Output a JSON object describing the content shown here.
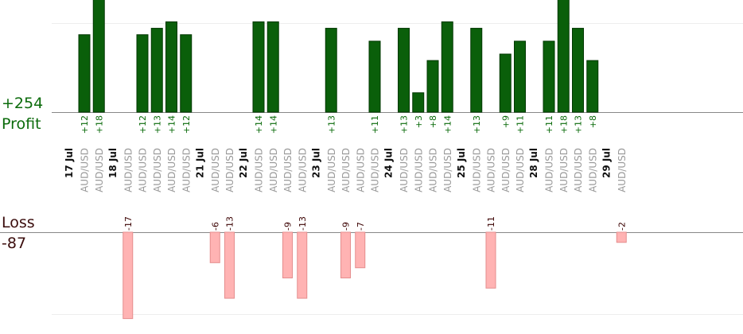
{
  "summary": {
    "profit_total": "+254",
    "profit_label": "Profit",
    "loss_label": "Loss",
    "loss_total": "-87"
  },
  "colors": {
    "profit_bar": "#0a5f0a",
    "profit_bar_edge": "#033803",
    "loss_bar": "#ffb3b3",
    "loss_bar_edge": "#e58d8d",
    "profit_label": "#0b6b0b",
    "loss_label": "#3b0d0d",
    "instrument_label": "#9a9a9a",
    "date_label": "#111111",
    "gridline": "#eeeeee",
    "baseline": "#888888"
  },
  "chart_data": {
    "type": "bar",
    "profit_ylim": [
      0,
      18
    ],
    "loss_ylim": [
      -18,
      0
    ],
    "date_groups": [
      {
        "date": "17 Jul",
        "slots": [
          {
            "instrument": "AUD/USD",
            "value": 12
          },
          {
            "instrument": "AUD/USD",
            "value": 18
          }
        ]
      },
      {
        "date": "18 Jul",
        "slots": [
          {
            "instrument": "AUD/USD",
            "value": -17
          },
          {
            "instrument": "AUD/USD",
            "value": 12
          },
          {
            "instrument": "AUD/USD",
            "value": 13
          },
          {
            "instrument": "AUD/USD",
            "value": 14
          },
          {
            "instrument": "AUD/USD",
            "value": 12
          }
        ]
      },
      {
        "date": "21 Jul",
        "slots": [
          {
            "instrument": "AUD/USD",
            "value": -6
          },
          {
            "instrument": "AUD/USD",
            "value": -13
          }
        ]
      },
      {
        "date": "22 Jul",
        "slots": [
          {
            "instrument": "AUD/USD",
            "value": 14
          },
          {
            "instrument": "AUD/USD",
            "value": 14
          },
          {
            "instrument": "AUD/USD",
            "value": -9
          },
          {
            "instrument": "AUD/USD",
            "value": -13
          }
        ]
      },
      {
        "date": "23 Jul",
        "slots": [
          {
            "instrument": "AUD/USD",
            "value": 13
          },
          {
            "instrument": "AUD/USD",
            "value": -9
          },
          {
            "instrument": "AUD/USD",
            "value": -7
          },
          {
            "instrument": "AUD/USD",
            "value": 11
          }
        ]
      },
      {
        "date": "24 Jul",
        "slots": [
          {
            "instrument": "AUD/USD",
            "value": 13
          },
          {
            "instrument": "AUD/USD",
            "value": 3
          },
          {
            "instrument": "AUD/USD",
            "value": 8
          },
          {
            "instrument": "AUD/USD",
            "value": 14
          }
        ]
      },
      {
        "date": "25 Jul",
        "slots": [
          {
            "instrument": "AUD/USD",
            "value": 13
          },
          {
            "instrument": "AUD/USD",
            "value": -11
          },
          {
            "instrument": "AUD/USD",
            "value": 9
          },
          {
            "instrument": "AUD/USD",
            "value": 11
          }
        ]
      },
      {
        "date": "28 Jul",
        "slots": [
          {
            "instrument": "AUD/USD",
            "value": 11
          },
          {
            "instrument": "AUD/USD",
            "value": 18
          },
          {
            "instrument": "AUD/USD",
            "value": 13
          },
          {
            "instrument": "AUD/USD",
            "value": 8
          }
        ]
      },
      {
        "date": "29 Jul",
        "slots": [
          {
            "instrument": "AUD/USD",
            "value": -2
          }
        ]
      }
    ]
  }
}
